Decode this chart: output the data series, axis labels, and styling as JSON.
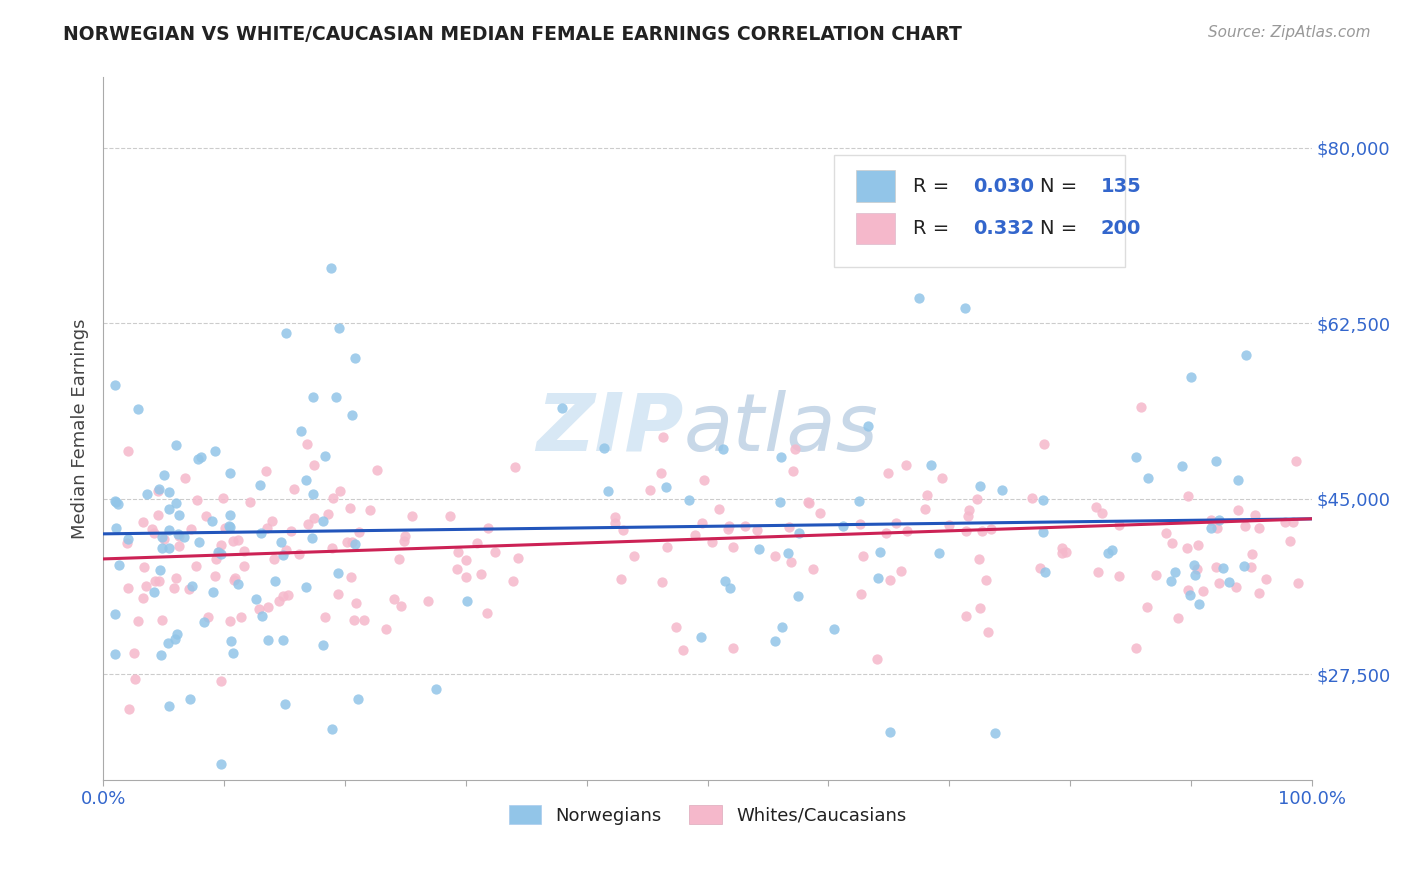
{
  "title": "NORWEGIAN VS WHITE/CAUCASIAN MEDIAN FEMALE EARNINGS CORRELATION CHART",
  "source": "Source: ZipAtlas.com",
  "ylabel": "Median Female Earnings",
  "yticks": [
    27500,
    45000,
    62500,
    80000
  ],
  "ytick_labels": [
    "$27,500",
    "$45,000",
    "$62,500",
    "$80,000"
  ],
  "xlim": [
    0,
    1
  ],
  "ylim": [
    17000,
    87000
  ],
  "legend_bottom": [
    "Norwegians",
    "Whites/Caucasians"
  ],
  "blue_color": "#92C5E8",
  "pink_color": "#F5B8CB",
  "blue_line_color": "#2255BB",
  "pink_line_color": "#CC2255",
  "title_color": "#222222",
  "axis_label_color": "#444444",
  "ytick_color": "#3366CC",
  "xtick_color": "#3366CC",
  "legend_text_color": "#222222",
  "legend_value_color": "#3366CC",
  "watermark_color": "#D8E8F5",
  "r_blue": 0.03,
  "n_blue": 135,
  "r_pink": 0.332,
  "n_pink": 200,
  "blue_trend_y0": 41500,
  "blue_trend_y1": 43000,
  "pink_trend_y0": 39000,
  "pink_trend_y1": 43000,
  "background_color": "#FFFFFF",
  "grid_color": "#CCCCCC"
}
